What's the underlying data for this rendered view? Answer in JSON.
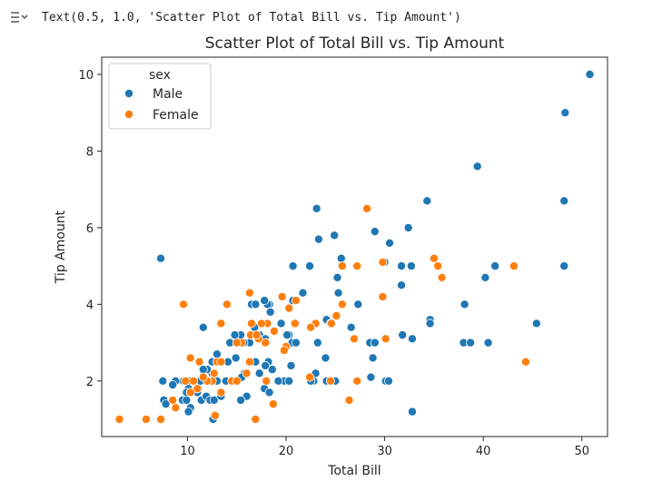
{
  "output": {
    "icon": "output-toggle-icon",
    "text": "Text(0.5, 1.0, 'Scatter Plot of Total Bill vs. Tip Amount')"
  },
  "chart_data": {
    "type": "scatter",
    "title": "Scatter Plot of Total Bill vs. Tip Amount",
    "xlabel": "Total Bill",
    "ylabel": "Tip Amount",
    "xlim": [
      1.3,
      52.6
    ],
    "ylim": [
      0.55,
      10.45
    ],
    "xticks": [
      10,
      20,
      30,
      40,
      50
    ],
    "yticks": [
      2,
      4,
      6,
      8,
      10
    ],
    "grid": false,
    "legend": {
      "title": "sex",
      "placement": "upper-left"
    },
    "series": [
      {
        "name": "Male",
        "color": "#1f77b4",
        "points": [
          [
            50.8,
            10.0
          ],
          [
            48.3,
            9.0
          ],
          [
            48.2,
            6.7
          ],
          [
            48.2,
            5.0
          ],
          [
            39.4,
            7.6
          ],
          [
            34.3,
            6.7
          ],
          [
            45.4,
            3.5
          ],
          [
            41.2,
            5.0
          ],
          [
            40.2,
            4.7
          ],
          [
            38.1,
            4.0
          ],
          [
            38.0,
            3.0
          ],
          [
            38.7,
            3.0
          ],
          [
            40.5,
            3.0
          ],
          [
            34.6,
            3.6
          ],
          [
            34.6,
            3.5
          ],
          [
            32.7,
            5.0
          ],
          [
            32.4,
            6.0
          ],
          [
            31.7,
            5.0
          ],
          [
            30.5,
            5.6
          ],
          [
            29.0,
            5.9
          ],
          [
            30.0,
            5.1
          ],
          [
            31.7,
            4.5
          ],
          [
            28.5,
            3.0
          ],
          [
            29.0,
            3.0
          ],
          [
            31.8,
            3.2
          ],
          [
            32.8,
            3.1
          ],
          [
            30.1,
            2.0
          ],
          [
            30.4,
            2.0
          ],
          [
            28.6,
            2.1
          ],
          [
            28.8,
            2.6
          ],
          [
            32.8,
            1.2
          ],
          [
            27.3,
            4.0
          ],
          [
            26.6,
            3.4
          ],
          [
            25.6,
            5.2
          ],
          [
            25.2,
            4.7
          ],
          [
            24.9,
            5.8
          ],
          [
            23.3,
            5.7
          ],
          [
            23.1,
            6.5
          ],
          [
            22.4,
            5.0
          ],
          [
            20.7,
            5.0
          ],
          [
            25.3,
            4.3
          ],
          [
            24.1,
            3.6
          ],
          [
            24.5,
            3.5
          ],
          [
            23.2,
            3.0
          ],
          [
            24.0,
            2.6
          ],
          [
            24.1,
            2.0
          ],
          [
            24.6,
            2.0
          ],
          [
            25.0,
            2.0
          ],
          [
            22.8,
            2.0
          ],
          [
            22.5,
            2.0
          ],
          [
            23.0,
            2.2
          ],
          [
            21.7,
            4.3
          ],
          [
            20.7,
            4.1
          ],
          [
            21.0,
            3.5
          ],
          [
            20.3,
            3.2
          ],
          [
            20.1,
            3.2
          ],
          [
            20.6,
            3.0
          ],
          [
            21.0,
            3.0
          ],
          [
            19.5,
            3.5
          ],
          [
            19.8,
            2.0
          ],
          [
            20.3,
            2.0
          ],
          [
            20.5,
            2.4
          ],
          [
            18.3,
            4.0
          ],
          [
            18.1,
            4.0
          ],
          [
            17.8,
            4.1
          ],
          [
            16.5,
            4.0
          ],
          [
            16.9,
            4.0
          ],
          [
            18.4,
            3.8
          ],
          [
            17.5,
            3.5
          ],
          [
            16.8,
            3.4
          ],
          [
            17.3,
            3.2
          ],
          [
            17.9,
            3.1
          ],
          [
            18.0,
            3.0
          ],
          [
            16.3,
            3.0
          ],
          [
            15.7,
            3.0
          ],
          [
            15.4,
            3.2
          ],
          [
            14.8,
            3.2
          ],
          [
            14.3,
            3.0
          ],
          [
            13.4,
            3.5
          ],
          [
            13.0,
            2.7
          ],
          [
            13.3,
            2.5
          ],
          [
            14.1,
            2.5
          ],
          [
            14.3,
            2.0
          ],
          [
            14.7,
            2.0
          ],
          [
            13.9,
            2.0
          ],
          [
            13.0,
            2.0
          ],
          [
            12.5,
            2.2
          ],
          [
            12.0,
            2.3
          ],
          [
            11.6,
            3.4
          ],
          [
            11.6,
            2.3
          ],
          [
            11.3,
            2.0
          ],
          [
            10.6,
            2.0
          ],
          [
            10.3,
            2.0
          ],
          [
            10.1,
            1.8
          ],
          [
            9.6,
            2.0
          ],
          [
            8.8,
            2.0
          ],
          [
            8.5,
            1.9
          ],
          [
            7.5,
            2.0
          ],
          [
            7.6,
            1.5
          ],
          [
            7.8,
            1.4
          ],
          [
            9.5,
            1.5
          ],
          [
            9.9,
            1.5
          ],
          [
            10.3,
            1.3
          ],
          [
            10.1,
            1.2
          ],
          [
            11.4,
            1.5
          ],
          [
            11.9,
            1.6
          ],
          [
            12.3,
            1.5
          ],
          [
            12.7,
            1.5
          ],
          [
            13.4,
            1.6
          ],
          [
            12.6,
            1.0
          ],
          [
            16.0,
            1.6
          ],
          [
            15.4,
            1.5
          ],
          [
            15.8,
            2.2
          ],
          [
            16.9,
            2.5
          ],
          [
            17.3,
            2.2
          ],
          [
            17.8,
            1.8
          ],
          [
            18.2,
            2.5
          ],
          [
            18.6,
            2.3
          ],
          [
            17.9,
            2.4
          ],
          [
            19.2,
            2.0
          ],
          [
            18.3,
            1.7
          ],
          [
            7.3,
            5.2
          ],
          [
            12.5,
            2.5
          ],
          [
            14.9,
            2.6
          ],
          [
            15.5,
            2.1
          ],
          [
            11.0,
            1.7
          ],
          [
            9.9,
            1.7
          ]
        ]
      },
      {
        "name": "Female",
        "color": "#ff7f0e",
        "points": [
          [
            44.3,
            2.5
          ],
          [
            43.1,
            5.0
          ],
          [
            35.8,
            4.7
          ],
          [
            35.4,
            5.0
          ],
          [
            35.0,
            5.2
          ],
          [
            29.8,
            5.1
          ],
          [
            29.8,
            4.2
          ],
          [
            28.2,
            6.5
          ],
          [
            27.2,
            5.0
          ],
          [
            25.7,
            5.0
          ],
          [
            25.7,
            4.0
          ],
          [
            26.9,
            3.1
          ],
          [
            25.1,
            3.7
          ],
          [
            24.6,
            3.5
          ],
          [
            23.0,
            3.5
          ],
          [
            22.5,
            3.4
          ],
          [
            21.0,
            4.1
          ],
          [
            20.9,
            3.5
          ],
          [
            20.3,
            3.9
          ],
          [
            19.6,
            4.2
          ],
          [
            20.0,
            2.9
          ],
          [
            19.8,
            2.8
          ],
          [
            18.8,
            3.3
          ],
          [
            18.1,
            3.5
          ],
          [
            17.5,
            3.5
          ],
          [
            17.9,
            3.0
          ],
          [
            17.2,
            3.1
          ],
          [
            16.4,
            3.2
          ],
          [
            16.3,
            4.3
          ],
          [
            16.5,
            3.5
          ],
          [
            15.5,
            3.0
          ],
          [
            15.0,
            3.0
          ],
          [
            14.0,
            4.0
          ],
          [
            13.4,
            3.5
          ],
          [
            13.0,
            2.5
          ],
          [
            13.4,
            2.5
          ],
          [
            12.7,
            2.2
          ],
          [
            12.5,
            2.0
          ],
          [
            12.0,
            2.0
          ],
          [
            11.6,
            2.1
          ],
          [
            11.2,
            2.5
          ],
          [
            10.3,
            2.6
          ],
          [
            10.6,
            2.0
          ],
          [
            11.0,
            1.8
          ],
          [
            10.3,
            1.7
          ],
          [
            9.8,
            2.0
          ],
          [
            9.6,
            4.0
          ],
          [
            8.8,
            1.3
          ],
          [
            8.5,
            1.5
          ],
          [
            7.3,
            1.0
          ],
          [
            5.8,
            1.0
          ],
          [
            3.1,
            1.0
          ],
          [
            12.8,
            1.1
          ],
          [
            13.4,
            1.7
          ],
          [
            14.5,
            2.0
          ],
          [
            15.0,
            2.0
          ],
          [
            16.3,
            2.5
          ],
          [
            16.9,
            1.0
          ],
          [
            18.7,
            1.4
          ],
          [
            22.4,
            2.1
          ],
          [
            24.5,
            2.0
          ],
          [
            26.4,
            1.5
          ],
          [
            27.2,
            2.0
          ],
          [
            30.1,
            3.1
          ],
          [
            18.0,
            2.0
          ],
          [
            16.0,
            2.2
          ],
          [
            17.0,
            3.2
          ]
        ]
      }
    ]
  }
}
